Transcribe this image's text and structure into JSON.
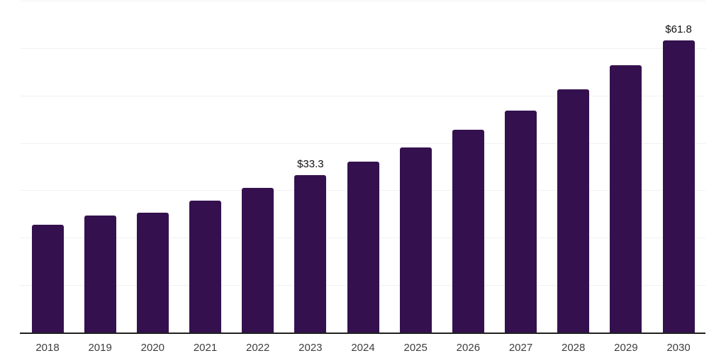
{
  "page": {
    "background_color": "#ffffff"
  },
  "chart_data": {
    "type": "bar",
    "categories": [
      "2018",
      "2019",
      "2020",
      "2021",
      "2022",
      "2023",
      "2024",
      "2025",
      "2026",
      "2027",
      "2028",
      "2029",
      "2030"
    ],
    "values": [
      22.9,
      24.8,
      25.4,
      28.0,
      30.6,
      33.3,
      36.2,
      39.2,
      42.9,
      46.9,
      51.4,
      56.5,
      61.8
    ],
    "data_labels": [
      null,
      null,
      null,
      null,
      null,
      "$33.3",
      null,
      null,
      null,
      null,
      null,
      null,
      "$61.8"
    ],
    "value_unit_prefix": "$",
    "ylim": [
      0,
      70
    ],
    "grid_step": 10,
    "grid": "horizontal-only",
    "legend": "none",
    "y_axis_tick_labels": "none",
    "bar_color": "#34114e",
    "axis_line_color": "#212121",
    "gridline_color": "#f1f1f1",
    "tick_label_color": "#3d3d3d",
    "data_label_color": "#111111"
  }
}
